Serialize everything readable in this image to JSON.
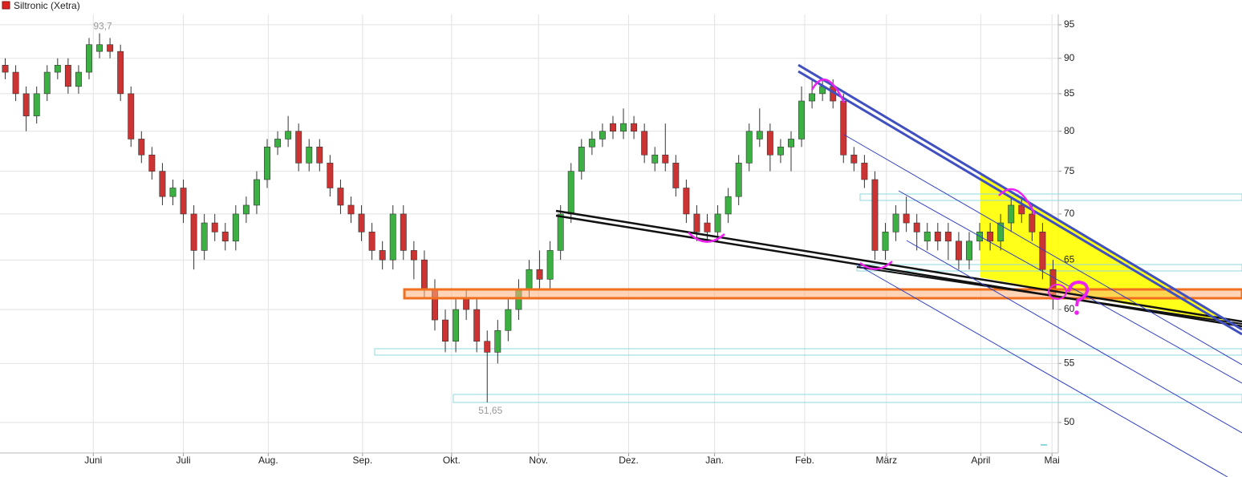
{
  "chart_data": {
    "type": "candlestick",
    "title": "Siltronic (Xetra)",
    "log_scale": true,
    "grid": true,
    "up_color": "#3cb043",
    "down_color": "#cc3333",
    "categories": [
      null,
      null,
      null,
      null,
      null,
      null,
      null,
      null,
      null,
      null,
      null,
      null,
      null,
      null,
      null,
      null,
      null,
      null,
      null,
      null,
      null,
      null,
      null,
      null,
      null,
      null,
      null,
      null,
      null,
      null,
      null,
      null,
      null,
      null,
      null,
      null,
      null,
      null,
      null,
      null,
      null,
      null,
      null,
      null,
      null,
      null,
      null,
      null,
      null,
      null,
      null,
      null,
      null,
      null,
      null,
      null,
      null,
      null,
      null,
      null,
      null,
      null,
      null,
      null,
      null,
      null,
      null,
      null,
      null,
      null,
      null,
      null,
      null,
      null,
      null,
      null,
      null,
      null,
      null,
      null,
      null,
      null,
      null,
      null,
      null,
      null,
      null,
      null,
      null,
      null,
      null,
      null,
      null,
      null,
      null,
      null,
      null,
      null,
      null,
      null,
      null
    ],
    "open": [
      89,
      88,
      85,
      82,
      85,
      88,
      89,
      86,
      88,
      91,
      92,
      91,
      85,
      79,
      77,
      75,
      72,
      73,
      70,
      66,
      69,
      68,
      67,
      70,
      71,
      74,
      78,
      79,
      80,
      76,
      78,
      76,
      73,
      71,
      70,
      68,
      66,
      65,
      70,
      66,
      65,
      62,
      59,
      57,
      61,
      60,
      57,
      56,
      58,
      60,
      62,
      64,
      63,
      66,
      70,
      75,
      78,
      79,
      81,
      80,
      81,
      80,
      76,
      77,
      76,
      73,
      70,
      69,
      68,
      70,
      72,
      76,
      79,
      80,
      77,
      78,
      79,
      84,
      85,
      86,
      84,
      77,
      76,
      74,
      66,
      68,
      70,
      69,
      67,
      68,
      68,
      67,
      65,
      67,
      68,
      67,
      69,
      71,
      70,
      68,
      64
    ],
    "high": [
      90,
      89,
      86,
      86,
      89,
      90,
      90,
      89,
      93,
      93.7,
      93,
      92,
      86,
      80,
      78,
      76,
      74,
      74,
      71,
      70,
      70,
      69,
      71,
      72,
      75,
      79,
      80,
      82,
      81,
      79,
      79,
      77,
      74,
      72,
      71,
      69,
      67,
      71,
      71,
      67,
      66,
      63,
      60,
      61,
      62,
      61,
      58,
      59,
      61,
      63,
      65,
      66,
      67,
      71,
      76,
      79,
      80,
      81,
      82,
      83,
      82,
      81,
      78,
      81,
      77,
      74,
      71,
      70,
      71,
      73,
      77,
      81,
      83,
      81,
      79,
      80,
      86,
      87,
      87,
      87,
      85,
      78,
      77,
      75,
      69,
      71,
      72,
      70,
      69,
      69,
      69,
      68,
      68,
      69,
      69,
      70,
      72,
      72,
      71,
      69,
      65
    ],
    "low": [
      87,
      84,
      80,
      81,
      84,
      87,
      85,
      85,
      87,
      90,
      90,
      84,
      78,
      76,
      74,
      71,
      71,
      69,
      64,
      65,
      67,
      66,
      66,
      69,
      70,
      73,
      77,
      78,
      75,
      75,
      75,
      72,
      70,
      69,
      67,
      65,
      64,
      64,
      65,
      63,
      61,
      58,
      56,
      56,
      59,
      56,
      51.65,
      55,
      57,
      59,
      61,
      62,
      62,
      65,
      69,
      74,
      77,
      78,
      79,
      79,
      79,
      76,
      75,
      75,
      72,
      69,
      67,
      67,
      67,
      69,
      71,
      75,
      78,
      75,
      76,
      75,
      78,
      83,
      84,
      83,
      76,
      75,
      73,
      65,
      65,
      67,
      68,
      66,
      66,
      66,
      65,
      64,
      64,
      66,
      66,
      66,
      68,
      69,
      67,
      63,
      60
    ],
    "close": [
      88,
      85,
      82,
      85,
      88,
      89,
      86,
      88,
      92,
      92,
      91,
      85,
      79,
      77,
      75,
      72,
      73,
      70,
      66,
      69,
      68,
      67,
      70,
      71,
      74,
      78,
      79,
      80,
      76,
      78,
      76,
      73,
      71,
      70,
      68,
      66,
      65,
      70,
      66,
      65,
      62,
      59,
      57,
      60,
      60,
      57,
      56,
      58,
      60,
      62,
      64,
      63,
      66,
      70,
      75,
      78,
      79,
      80,
      80,
      81,
      80,
      77,
      77,
      76,
      73,
      70,
      68,
      68,
      70,
      72,
      76,
      80,
      80,
      77,
      78,
      79,
      84,
      85,
      86,
      84,
      77,
      76,
      74,
      66,
      68,
      70,
      69,
      68,
      68,
      67,
      67,
      65,
      67,
      68,
      67,
      69,
      71,
      70,
      68,
      64,
      61
    ],
    "annotations": [
      {
        "index": 9,
        "value": 93.7,
        "label": "93,7"
      },
      {
        "index": 46,
        "value": 51.65,
        "label": "51,65"
      }
    ],
    "xlim": [
      -0.5,
      100.5
    ],
    "xticks": [
      {
        "value": 8.4,
        "label": "Juni"
      },
      {
        "value": 17,
        "label": "Juli"
      },
      {
        "value": 25.1,
        "label": "Aug."
      },
      {
        "value": 34.1,
        "label": "Sep."
      },
      {
        "value": 42.6,
        "label": "Okt."
      },
      {
        "value": 50.9,
        "label": "Nov."
      },
      {
        "value": 59.5,
        "label": "Dez."
      },
      {
        "value": 67.7,
        "label": "Jan."
      },
      {
        "value": 76.3,
        "label": "Feb."
      },
      {
        "value": 84.1,
        "label": "März"
      },
      {
        "value": 93.1,
        "label": "April"
      },
      {
        "value": 99.9,
        "label": "Mai"
      }
    ],
    "ylim": [
      47.6,
      96.6
    ],
    "yticks": [
      50,
      55,
      60,
      65,
      70,
      75,
      80,
      85,
      90,
      95
    ]
  }
}
